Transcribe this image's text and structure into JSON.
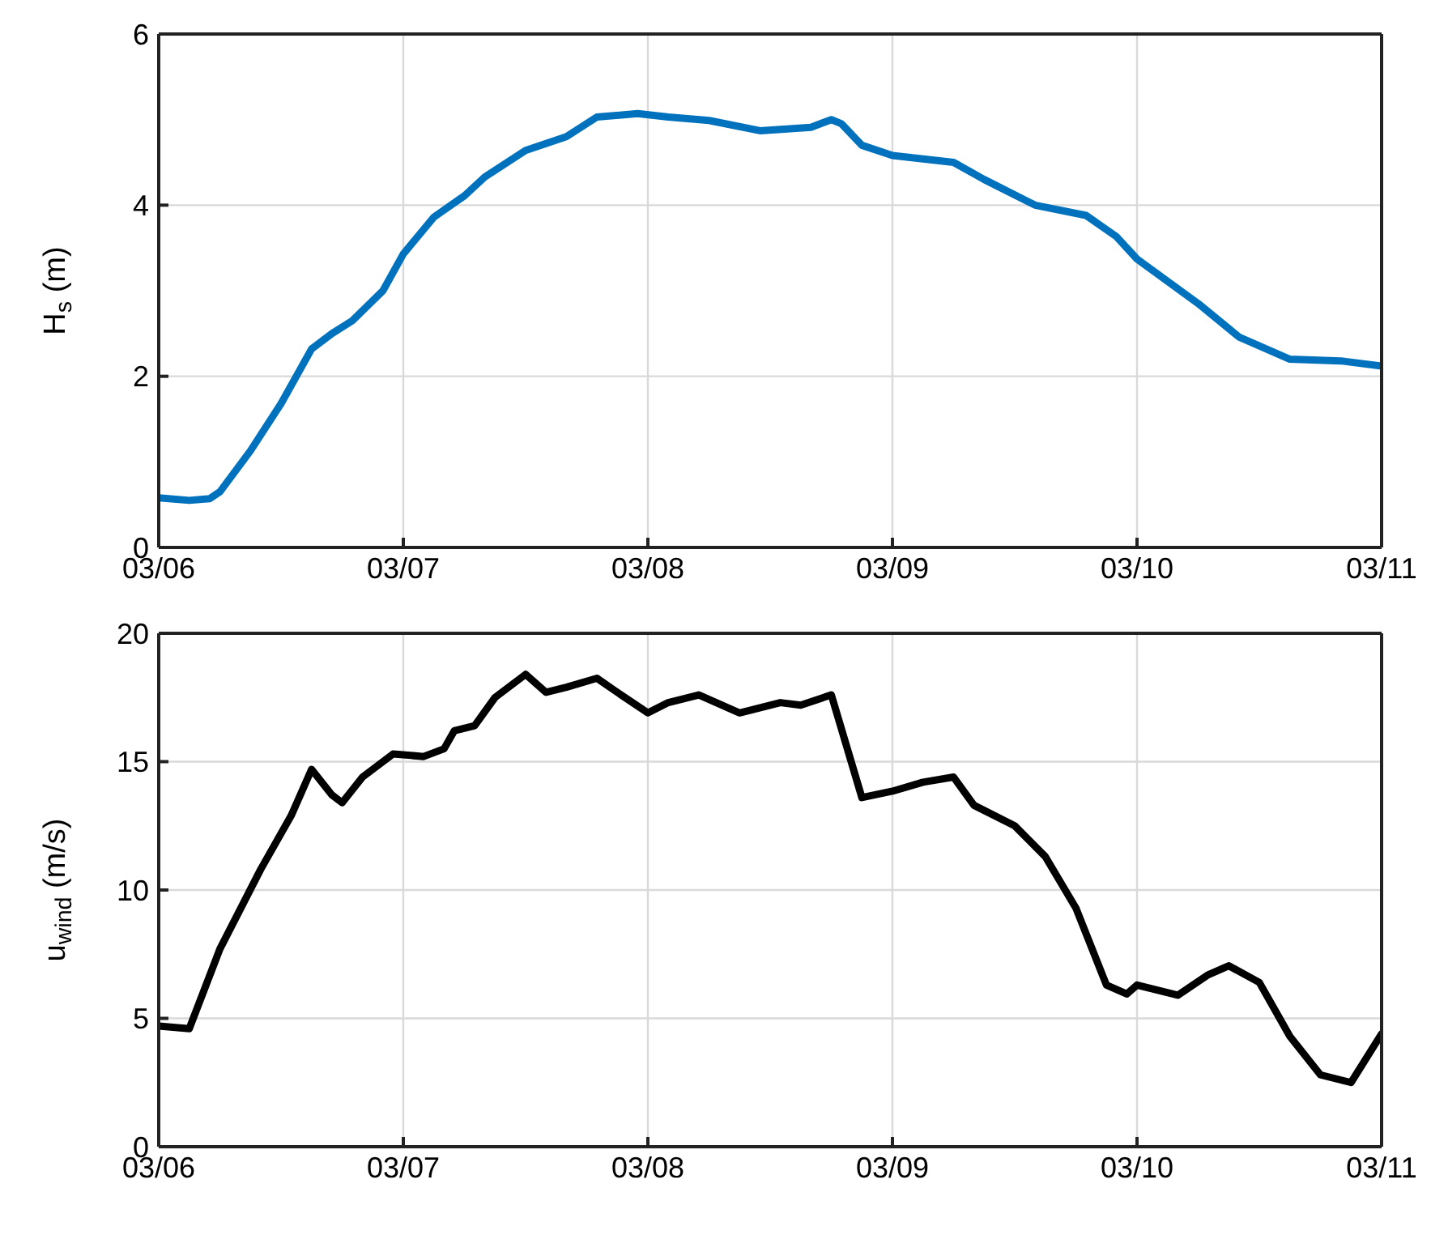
{
  "chart_data": [
    {
      "type": "line",
      "ylabel": "H$_{s}$ (m)",
      "xlim": [
        "--03-06",
        "--03-11"
      ],
      "xticks": [
        {
          "value": "--03-06",
          "label": "03/06"
        },
        {
          "value": "--03-07",
          "label": "03/07"
        },
        {
          "value": "--03-08",
          "label": "03/08"
        },
        {
          "value": "--03-09",
          "label": "03/09"
        },
        {
          "value": "--03-10",
          "label": "03/10"
        },
        {
          "value": "--03-11",
          "label": "03/11"
        }
      ],
      "ylim": [
        0,
        6
      ],
      "yticks": [
        0,
        2,
        4,
        6
      ],
      "grid": true,
      "line_style": "solid",
      "series": [
        {
          "color": "#0072bd",
          "x": [
            "--03-06T00:00",
            "--03-06T03:00",
            "--03-06T05:00",
            "--03-06T06:00",
            "--03-06T09:00",
            "--03-06T12:00",
            "--03-06T15:00",
            "--03-06T17:00",
            "--03-06T19:00",
            "--03-06T22:00",
            "--03-07T00:00",
            "--03-07T03:00",
            "--03-07T06:00",
            "--03-07T08:00",
            "--03-07T12:00",
            "--03-07T16:00",
            "--03-07T19:00",
            "--03-07T23:00",
            "--03-08T02:00",
            "--03-08T06:00",
            "--03-08T11:00",
            "--03-08T16:00",
            "--03-08T18:00",
            "--03-08T19:00",
            "--03-08T21:00",
            "--03-09T00:00",
            "--03-09T06:00",
            "--03-09T09:00",
            "--03-09T14:00",
            "--03-09T19:00",
            "--03-09T22:00",
            "--03-10T00:00",
            "--03-10T06:00",
            "--03-10T10:00",
            "--03-10T15:00",
            "--03-10T20:00",
            "--03-11T00:00"
          ],
          "values": [
            0.58,
            0.55,
            0.57,
            0.65,
            1.13,
            1.68,
            2.32,
            2.5,
            2.65,
            3.0,
            3.43,
            3.86,
            4.11,
            4.33,
            4.64,
            4.8,
            5.03,
            5.07,
            5.03,
            4.99,
            4.87,
            4.91,
            5.0,
            4.95,
            4.7,
            4.58,
            4.5,
            4.3,
            4.0,
            3.88,
            3.63,
            3.37,
            2.85,
            2.46,
            2.2,
            2.18,
            2.12
          ]
        }
      ]
    },
    {
      "type": "line",
      "ylabel": "u$_{wind}$ (m/s)",
      "xlim": [
        "--03-06",
        "--03-11"
      ],
      "xticks": [
        {
          "value": "--03-06",
          "label": "03/06"
        },
        {
          "value": "--03-07",
          "label": "03/07"
        },
        {
          "value": "--03-08",
          "label": "03/08"
        },
        {
          "value": "--03-09",
          "label": "03/09"
        },
        {
          "value": "--03-10",
          "label": "03/10"
        },
        {
          "value": "--03-11",
          "label": "03/11"
        }
      ],
      "ylim": [
        0,
        20
      ],
      "yticks": [
        0,
        5,
        10,
        15,
        20
      ],
      "grid": true,
      "line_style": "solid",
      "series": [
        {
          "color": "#000000",
          "x": [
            "--03-06T00:00",
            "--03-06T03:00",
            "--03-06T06:00",
            "--03-06T10:00",
            "--03-06T13:00",
            "--03-06T15:00",
            "--03-06T17:00",
            "--03-06T18:00",
            "--03-06T20:00",
            "--03-06T23:00",
            "--03-07T02:00",
            "--03-07T04:00",
            "--03-07T05:00",
            "--03-07T07:00",
            "--03-07T09:00",
            "--03-07T12:00",
            "--03-07T14:00",
            "--03-07T16:00",
            "--03-07T19:00",
            "--03-07T21:00",
            "--03-08T00:00",
            "--03-08T02:00",
            "--03-08T05:00",
            "--03-08T09:00",
            "--03-08T13:00",
            "--03-08T15:00",
            "--03-08T18:00",
            "--03-08T21:00",
            "--03-09T00:00",
            "--03-09T03:00",
            "--03-09T06:00",
            "--03-09T08:00",
            "--03-09T12:00",
            "--03-09T15:00",
            "--03-09T18:00",
            "--03-09T21:00",
            "--03-09T23:00",
            "--03-10T00:00",
            "--03-10T04:00",
            "--03-10T07:00",
            "--03-10T09:00",
            "--03-10T12:00",
            "--03-10T15:00",
            "--03-10T18:00",
            "--03-10T21:00",
            "--03-11T00:00"
          ],
          "values": [
            4.7,
            4.6,
            7.7,
            10.8,
            12.9,
            14.7,
            13.7,
            13.4,
            14.4,
            15.3,
            15.2,
            15.5,
            16.2,
            16.4,
            17.5,
            18.4,
            17.7,
            17.9,
            18.25,
            17.7,
            16.9,
            17.3,
            17.6,
            16.9,
            17.3,
            17.2,
            17.6,
            13.6,
            13.85,
            14.2,
            14.4,
            13.3,
            12.5,
            11.3,
            9.3,
            6.3,
            5.95,
            6.3,
            5.9,
            6.7,
            7.05,
            6.4,
            4.3,
            2.8,
            2.5,
            4.4
          ]
        }
      ]
    }
  ]
}
